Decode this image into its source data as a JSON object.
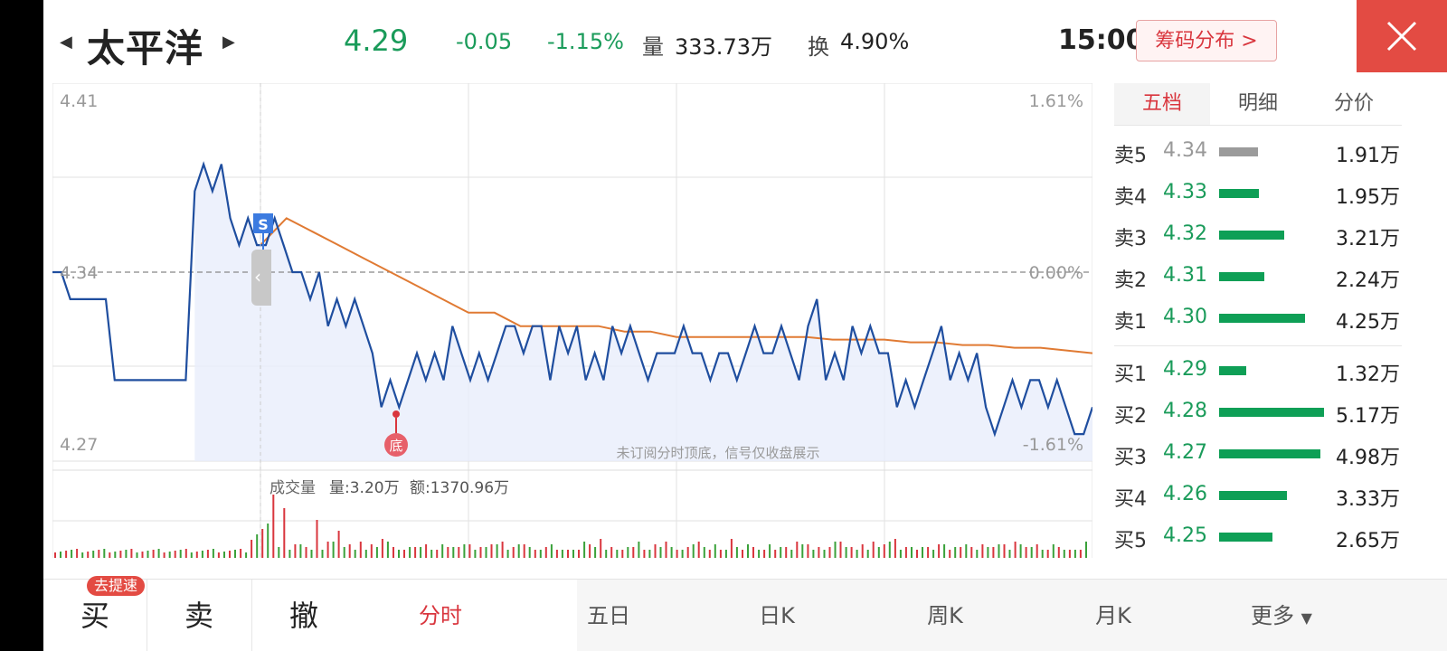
{
  "header": {
    "stock_name": "太平洋",
    "price": "4.29",
    "change": "-0.05",
    "change_pct": "-1.15%",
    "volume_label": "量",
    "volume_value": "333.73万",
    "turnover_label": "换",
    "turnover_value": "4.90%",
    "time": "15:00",
    "chip_button": "筹码分布 >",
    "close_icon": "close-icon",
    "colors": {
      "down": "#1a9b5a",
      "up": "#d9363e",
      "close_bg": "#e34b43"
    }
  },
  "chart": {
    "price_high": "4.41",
    "price_mid": "4.34",
    "price_low": "4.27",
    "pct_high": "1.61%",
    "pct_mid": "0.00%",
    "pct_low": "-1.61%",
    "signal_s": "S",
    "signal_bottom": "底",
    "notice": "未订阅分时顶底，信号仅收盘展示",
    "volume_title": "成交量",
    "volume_info": "量:3.20万",
    "amount_info": "额:1370.96万"
  },
  "chart_data": {
    "type": "line",
    "ylim": [
      4.27,
      4.41
    ],
    "prev_close": 4.34,
    "series": [
      {
        "values": [
          4.34,
          4.34,
          4.33,
          4.33,
          4.33,
          4.33,
          4.33,
          4.3,
          4.3,
          4.3,
          4.3,
          4.3,
          4.3,
          4.3,
          4.3,
          4.3,
          4.37,
          4.38,
          4.37,
          4.38,
          4.36,
          4.35,
          4.36,
          4.35,
          4.35,
          4.36,
          4.35,
          4.34,
          4.34,
          4.33,
          4.34,
          4.32,
          4.33,
          4.32,
          4.33,
          4.32,
          4.31,
          4.29,
          4.3,
          4.29,
          4.3,
          4.31,
          4.3,
          4.31,
          4.3,
          4.32,
          4.31,
          4.3,
          4.31,
          4.3,
          4.31,
          4.32,
          4.32,
          4.31,
          4.32,
          4.32,
          4.3,
          4.32,
          4.31,
          4.32,
          4.3,
          4.31,
          4.3,
          4.32,
          4.31,
          4.32,
          4.31,
          4.3,
          4.31,
          4.31,
          4.31,
          4.32,
          4.31,
          4.31,
          4.3,
          4.31,
          4.31,
          4.3,
          4.31,
          4.32,
          4.31,
          4.31,
          4.32,
          4.31,
          4.3,
          4.32,
          4.33,
          4.3,
          4.31,
          4.3,
          4.32,
          4.31,
          4.32,
          4.31,
          4.31,
          4.29,
          4.3,
          4.29,
          4.3,
          4.31,
          4.32,
          4.3,
          4.31,
          4.3,
          4.31,
          4.29,
          4.28,
          4.29,
          4.3,
          4.29,
          4.3,
          4.3,
          4.29,
          4.3,
          4.29,
          4.28,
          4.28,
          4.29
        ]
      },
      {
        "values": [
          4.35,
          4.36,
          4.355,
          4.35,
          4.345,
          4.34,
          4.335,
          4.33,
          4.325,
          4.325,
          4.32,
          4.32,
          4.32,
          4.32,
          4.318,
          4.318,
          4.316,
          4.316,
          4.316,
          4.316,
          4.316,
          4.316,
          4.315,
          4.315,
          4.315,
          4.314,
          4.314,
          4.313,
          4.313,
          4.312,
          4.312,
          4.311,
          4.31
        ]
      }
    ],
    "volume_bars_up": [
      2,
      3,
      2,
      5,
      4,
      3,
      6,
      4,
      3,
      5,
      2,
      4,
      3,
      6,
      2,
      3,
      4,
      2,
      5,
      3,
      2,
      4,
      3,
      2,
      5,
      3,
      2,
      3,
      2,
      4,
      6,
      3,
      2,
      4,
      3,
      5,
      2,
      3,
      2,
      4,
      3,
      2,
      5,
      3,
      4,
      2,
      3
    ],
    "volume_bars_down": [
      3,
      2,
      4,
      2,
      3,
      5,
      2,
      3,
      4,
      2,
      3,
      2,
      4,
      3,
      2,
      5,
      3,
      2,
      4,
      3,
      2,
      3,
      5,
      2,
      3,
      4,
      2,
      3,
      2,
      4,
      3,
      2,
      5,
      3,
      2,
      4,
      3,
      2,
      3,
      4,
      2,
      3,
      5,
      2,
      3,
      4
    ]
  },
  "order_book": {
    "tabs": [
      "五档",
      "明细",
      "分价"
    ],
    "asks": [
      {
        "label": "卖5",
        "price": "4.34",
        "volume": "1.91万",
        "qty": 1.91
      },
      {
        "label": "卖4",
        "price": "4.33",
        "volume": "1.95万",
        "qty": 1.95
      },
      {
        "label": "卖3",
        "price": "4.32",
        "volume": "3.21万",
        "qty": 3.21
      },
      {
        "label": "卖2",
        "price": "4.31",
        "volume": "2.24万",
        "qty": 2.24
      },
      {
        "label": "卖1",
        "price": "4.30",
        "volume": "4.25万",
        "qty": 4.25
      }
    ],
    "bids": [
      {
        "label": "买1",
        "price": "4.29",
        "volume": "1.32万",
        "qty": 1.32
      },
      {
        "label": "买2",
        "price": "4.28",
        "volume": "5.17万",
        "qty": 5.17
      },
      {
        "label": "买3",
        "price": "4.27",
        "volume": "4.98万",
        "qty": 4.98
      },
      {
        "label": "买4",
        "price": "4.26",
        "volume": "3.33万",
        "qty": 3.33
      },
      {
        "label": "买5",
        "price": "4.25",
        "volume": "2.65万",
        "qty": 2.65
      }
    ]
  },
  "bottom_bar": {
    "buy": "买",
    "buy_badge": "去提速",
    "sell": "卖",
    "cancel": "撤",
    "period_tabs": [
      "分时",
      "五日",
      "日K",
      "周K",
      "月K",
      "更多"
    ]
  }
}
